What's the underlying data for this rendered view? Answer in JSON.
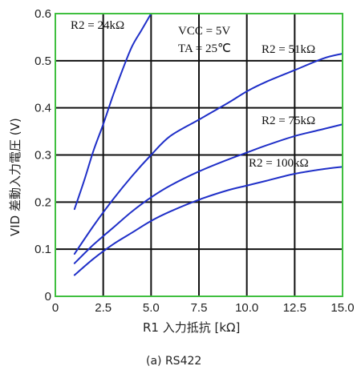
{
  "chart_data": {
    "type": "line",
    "caption": "(a) RS422",
    "xlabel": "R1 入力抵抗 [kΩ]",
    "ylabel": "VID 差動入力電圧 (V)",
    "xlim": [
      0,
      15
    ],
    "ylim": [
      0,
      0.6
    ],
    "x_ticks": [
      0,
      2.5,
      5.0,
      7.5,
      10.0,
      12.5,
      15.0
    ],
    "x_tick_labels": [
      "0",
      "2.5",
      "5.0",
      "7.5",
      "10.0",
      "12.5",
      "15.0"
    ],
    "y_ticks": [
      0,
      0.1,
      0.2,
      0.3,
      0.4,
      0.5,
      0.6
    ],
    "y_tick_labels": [
      "0",
      "0.1",
      "0.2",
      "0.3",
      "0.4",
      "0.5",
      "0.6"
    ],
    "grid": true,
    "conditions": [
      {
        "name": "VCC",
        "value": "5V"
      },
      {
        "name": "TA",
        "value": "25℃"
      }
    ],
    "series": [
      {
        "name": "R2 = 24kΩ",
        "x": [
          1.0,
          1.5,
          2.0,
          2.5,
          3.0,
          3.5,
          4.0,
          4.5,
          5.0
        ],
        "y": [
          0.185,
          0.245,
          0.31,
          0.365,
          0.425,
          0.48,
          0.53,
          0.565,
          0.6
        ]
      },
      {
        "name": "R2 = 51kΩ",
        "x": [
          1.0,
          2.0,
          3.0,
          4.0,
          5.0,
          6.0,
          7.5,
          9.0,
          10.0,
          11.0,
          12.5,
          14.0,
          15.0
        ],
        "y": [
          0.09,
          0.15,
          0.205,
          0.255,
          0.3,
          0.34,
          0.375,
          0.41,
          0.435,
          0.455,
          0.48,
          0.505,
          0.515
        ]
      },
      {
        "name": "R2 = 75kΩ",
        "x": [
          1.0,
          2.0,
          3.0,
          4.0,
          5.0,
          6.0,
          7.5,
          9.0,
          10.0,
          11.0,
          12.5,
          14.0,
          15.0
        ],
        "y": [
          0.07,
          0.11,
          0.145,
          0.18,
          0.21,
          0.235,
          0.265,
          0.29,
          0.305,
          0.32,
          0.34,
          0.355,
          0.365
        ]
      },
      {
        "name": "R2 = 100kΩ",
        "x": [
          1.0,
          2.0,
          3.0,
          4.0,
          5.0,
          6.0,
          7.5,
          9.0,
          10.0,
          11.0,
          12.5,
          14.0,
          15.0
        ],
        "y": [
          0.045,
          0.08,
          0.11,
          0.135,
          0.16,
          0.18,
          0.205,
          0.225,
          0.235,
          0.245,
          0.26,
          0.27,
          0.275
        ]
      }
    ],
    "colors": {
      "curve": "#1f2fc8",
      "frame": "#3fbf3f",
      "grid": "#111111"
    }
  }
}
